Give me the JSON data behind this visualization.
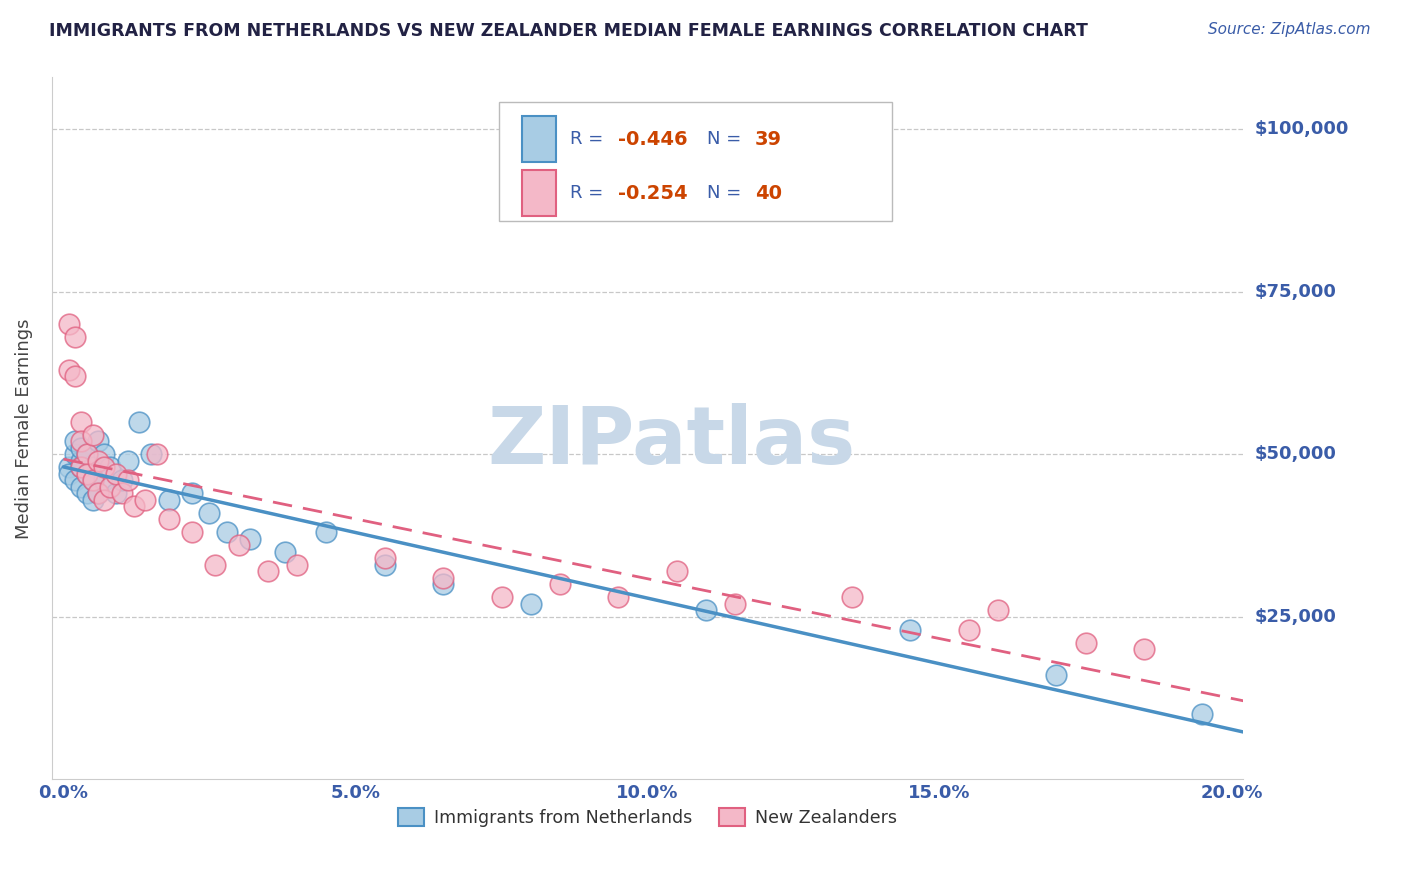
{
  "title": "IMMIGRANTS FROM NETHERLANDS VS NEW ZEALANDER MEDIAN FEMALE EARNINGS CORRELATION CHART",
  "source_text": "Source: ZipAtlas.com",
  "ylabel": "Median Female Earnings",
  "xlim": [
    -0.002,
    0.202
  ],
  "ylim": [
    0,
    108000
  ],
  "yticks": [
    25000,
    50000,
    75000,
    100000
  ],
  "ytick_labels": [
    "$25,000",
    "$50,000",
    "$75,000",
    "$100,000"
  ],
  "xticks": [
    0.0,
    0.05,
    0.1,
    0.15,
    0.2
  ],
  "xtick_labels": [
    "0.0%",
    "5.0%",
    "10.0%",
    "15.0%",
    "20.0%"
  ],
  "blue_color": "#a8cce4",
  "pink_color": "#f4b8c8",
  "blue_edge": "#4a90c4",
  "pink_edge": "#e06080",
  "title_color": "#222244",
  "axis_color": "#3a5ca8",
  "grid_color": "#c8c8c8",
  "watermark_color": "#c8d8e8",
  "legend_label1": "Immigrants from Netherlands",
  "legend_label2": "New Zealanders",
  "blue_x": [
    0.001,
    0.001,
    0.002,
    0.002,
    0.002,
    0.003,
    0.003,
    0.003,
    0.003,
    0.004,
    0.004,
    0.004,
    0.005,
    0.005,
    0.005,
    0.006,
    0.006,
    0.007,
    0.007,
    0.008,
    0.009,
    0.01,
    0.011,
    0.013,
    0.015,
    0.018,
    0.022,
    0.025,
    0.028,
    0.032,
    0.038,
    0.045,
    0.055,
    0.065,
    0.08,
    0.11,
    0.145,
    0.17,
    0.195
  ],
  "blue_y": [
    48000,
    47000,
    50000,
    46000,
    52000,
    49000,
    48000,
    45000,
    51000,
    47000,
    44000,
    50000,
    48000,
    43000,
    46000,
    52000,
    44000,
    50000,
    46000,
    48000,
    44000,
    46000,
    49000,
    55000,
    50000,
    43000,
    44000,
    41000,
    38000,
    37000,
    35000,
    38000,
    33000,
    30000,
    27000,
    26000,
    23000,
    16000,
    10000
  ],
  "pink_x": [
    0.001,
    0.001,
    0.002,
    0.002,
    0.003,
    0.003,
    0.003,
    0.004,
    0.004,
    0.005,
    0.005,
    0.006,
    0.006,
    0.007,
    0.007,
    0.008,
    0.009,
    0.01,
    0.011,
    0.012,
    0.014,
    0.016,
    0.018,
    0.022,
    0.026,
    0.03,
    0.035,
    0.04,
    0.055,
    0.065,
    0.075,
    0.085,
    0.095,
    0.105,
    0.115,
    0.135,
    0.155,
    0.16,
    0.175,
    0.185
  ],
  "pink_y": [
    63000,
    70000,
    62000,
    68000,
    48000,
    55000,
    52000,
    50000,
    47000,
    53000,
    46000,
    49000,
    44000,
    48000,
    43000,
    45000,
    47000,
    44000,
    46000,
    42000,
    43000,
    50000,
    40000,
    38000,
    33000,
    36000,
    32000,
    33000,
    34000,
    31000,
    28000,
    30000,
    28000,
    32000,
    27000,
    28000,
    23000,
    26000,
    21000,
    20000
  ],
  "blue_line_x": [
    0.0,
    0.2
  ],
  "blue_line_y": [
    47500,
    9000
  ],
  "pink_line_x": [
    0.0,
    0.2
  ],
  "pink_line_y": [
    46500,
    22000
  ]
}
